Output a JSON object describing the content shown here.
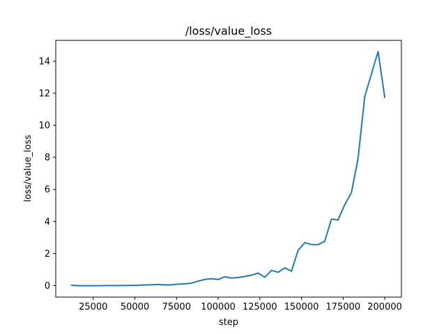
{
  "chart_data": {
    "type": "line",
    "title": "/loss/value_loss",
    "xlabel": "step",
    "ylabel": "loss/value_loss",
    "xlim": [
      2500,
      210000
    ],
    "ylim": [
      -0.72,
      15.3
    ],
    "xticks": [
      25000,
      50000,
      75000,
      100000,
      125000,
      150000,
      175000,
      200000
    ],
    "xtick_labels": [
      "25000",
      "50000",
      "75000",
      "100000",
      "125000",
      "150000",
      "175000",
      "200000"
    ],
    "yticks": [
      0,
      2,
      4,
      6,
      8,
      10,
      12,
      14
    ],
    "ytick_labels": [
      "0",
      "2",
      "4",
      "6",
      "8",
      "10",
      "12",
      "14"
    ],
    "grid": false,
    "series": [
      {
        "color": "#1f77b4",
        "x": [
          12000,
          16000,
          20000,
          24000,
          28000,
          32000,
          36000,
          40000,
          44000,
          48000,
          52000,
          56000,
          60000,
          64000,
          68000,
          72000,
          76000,
          80000,
          84000,
          88000,
          92000,
          96000,
          100000,
          104000,
          108000,
          112000,
          116000,
          120000,
          124000,
          128000,
          132000,
          136000,
          140000,
          144000,
          148000,
          152000,
          156000,
          160000,
          164000,
          168000,
          172000,
          176000,
          180000,
          184000,
          188000,
          192000,
          196000,
          200000
        ],
        "y": [
          0.02,
          -0.01,
          -0.01,
          -0.01,
          -0.01,
          0.0,
          0.0,
          0.0,
          0.01,
          0.01,
          0.02,
          0.04,
          0.05,
          0.07,
          0.04,
          0.05,
          0.09,
          0.11,
          0.15,
          0.28,
          0.38,
          0.43,
          0.38,
          0.55,
          0.47,
          0.5,
          0.57,
          0.65,
          0.78,
          0.52,
          0.95,
          0.83,
          1.1,
          0.9,
          2.2,
          2.68,
          2.56,
          2.55,
          2.77,
          4.15,
          4.1,
          5.05,
          5.8,
          7.95,
          11.8,
          13.2,
          14.6,
          11.75
        ]
      }
    ]
  }
}
